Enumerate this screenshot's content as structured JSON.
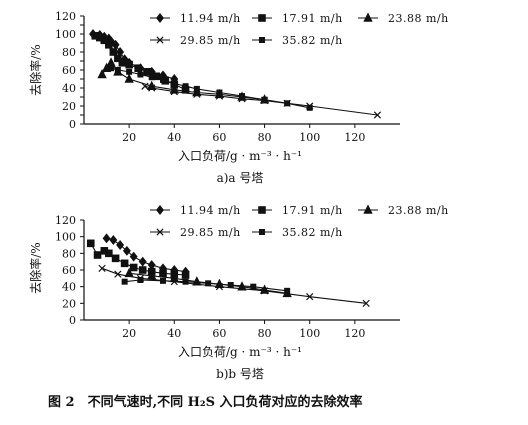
{
  "figure_caption": "图 2　不同气速时,不同 H₂S 入口负荷对应的去除效率",
  "legend_labels": [
    "11.94 m/h",
    "17.91 m/h",
    "23.88 m/h",
    "29.85 m/h",
    "35.82 m/h"
  ],
  "marker_shapes": [
    "diamond",
    "square",
    "triangle",
    "cross",
    "square-small"
  ],
  "chart_data": [
    {
      "type": "line",
      "caption": "a)a 号塔",
      "xlabel": "入口负荷/g · m⁻³ · h⁻¹",
      "ylabel": "去除率/%",
      "xlim": [
        0,
        140
      ],
      "ylim": [
        0,
        120
      ],
      "xticks": [
        20,
        40,
        60,
        80,
        100,
        120
      ],
      "yticks": [
        0,
        10,
        20,
        30,
        40,
        50,
        60,
        70,
        80,
        90,
        100,
        110,
        120
      ],
      "grid": false,
      "legend_position": "top-right",
      "series": [
        {
          "name": "11.94 m/h",
          "marker": "diamond",
          "x": [
            4,
            7,
            9,
            11,
            12,
            14,
            16,
            18,
            20,
            25,
            30,
            35,
            40
          ],
          "y": [
            100,
            99,
            97,
            95,
            92,
            88,
            80,
            72,
            68,
            62,
            58,
            54,
            50
          ]
        },
        {
          "name": "17.91 m/h",
          "marker": "square",
          "x": [
            5,
            7,
            9,
            11,
            13,
            15,
            17,
            20,
            24,
            28,
            32,
            36,
            40,
            45
          ],
          "y": [
            98,
            96,
            93,
            88,
            80,
            73,
            68,
            66,
            62,
            58,
            53,
            48,
            44,
            38
          ]
        },
        {
          "name": "23.88 m/h",
          "marker": "triangle",
          "x": [
            8,
            10,
            12,
            15,
            20,
            30,
            40,
            50,
            60,
            70,
            80
          ],
          "y": [
            55,
            62,
            68,
            58,
            50,
            42,
            38,
            35,
            33,
            30,
            27
          ]
        },
        {
          "name": "29.85 m/h",
          "marker": "cross",
          "x": [
            27,
            30,
            40,
            50,
            60,
            70,
            80,
            90,
            100,
            130
          ],
          "y": [
            42,
            40,
            36,
            33,
            31,
            28,
            26,
            23,
            20,
            10
          ]
        },
        {
          "name": "35.82 m/h",
          "marker": "square-small",
          "x": [
            12,
            15,
            20,
            25,
            30,
            35,
            40,
            45,
            50,
            60,
            70,
            80,
            90,
            100
          ],
          "y": [
            62,
            60,
            58,
            55,
            52,
            49,
            45,
            42,
            39,
            35,
            31,
            27,
            23,
            18
          ]
        }
      ]
    },
    {
      "type": "line",
      "caption": "b)b 号塔",
      "xlabel": "入口负荷/g · m⁻³ · h⁻¹",
      "ylabel": "去除率/%",
      "xlim": [
        0,
        140
      ],
      "ylim": [
        0,
        120
      ],
      "xticks": [
        20,
        40,
        60,
        80,
        100,
        120
      ],
      "yticks": [
        0,
        20,
        40,
        60,
        80,
        100,
        120
      ],
      "grid": false,
      "legend_position": "top-right",
      "series": [
        {
          "name": "11.94 m/h",
          "marker": "diamond",
          "x": [
            10,
            13,
            16,
            19,
            22,
            26,
            30,
            35,
            40,
            45
          ],
          "y": [
            98,
            96,
            90,
            83,
            76,
            70,
            66,
            62,
            60,
            58
          ]
        },
        {
          "name": "17.91 m/h",
          "marker": "square",
          "x": [
            3,
            6,
            9,
            11,
            14,
            18,
            22,
            26,
            30,
            35,
            40,
            45
          ],
          "y": [
            92,
            78,
            83,
            80,
            74,
            68,
            63,
            60,
            58,
            56,
            55,
            54
          ]
        },
        {
          "name": "23.88 m/h",
          "marker": "triangle",
          "x": [
            20,
            30,
            40,
            50,
            60,
            70,
            80,
            90
          ],
          "y": [
            56,
            53,
            50,
            46,
            43,
            40,
            36,
            32
          ]
        },
        {
          "name": "29.85 m/h",
          "marker": "cross",
          "x": [
            8,
            15,
            25,
            40,
            60,
            80,
            100,
            125
          ],
          "y": [
            62,
            55,
            50,
            46,
            40,
            35,
            28,
            20
          ]
        },
        {
          "name": "35.82 m/h",
          "marker": "square-small",
          "x": [
            18,
            25,
            35,
            45,
            55,
            65,
            75,
            90
          ],
          "y": [
            46,
            48,
            47,
            46,
            44,
            42,
            40,
            35
          ]
        }
      ]
    }
  ]
}
